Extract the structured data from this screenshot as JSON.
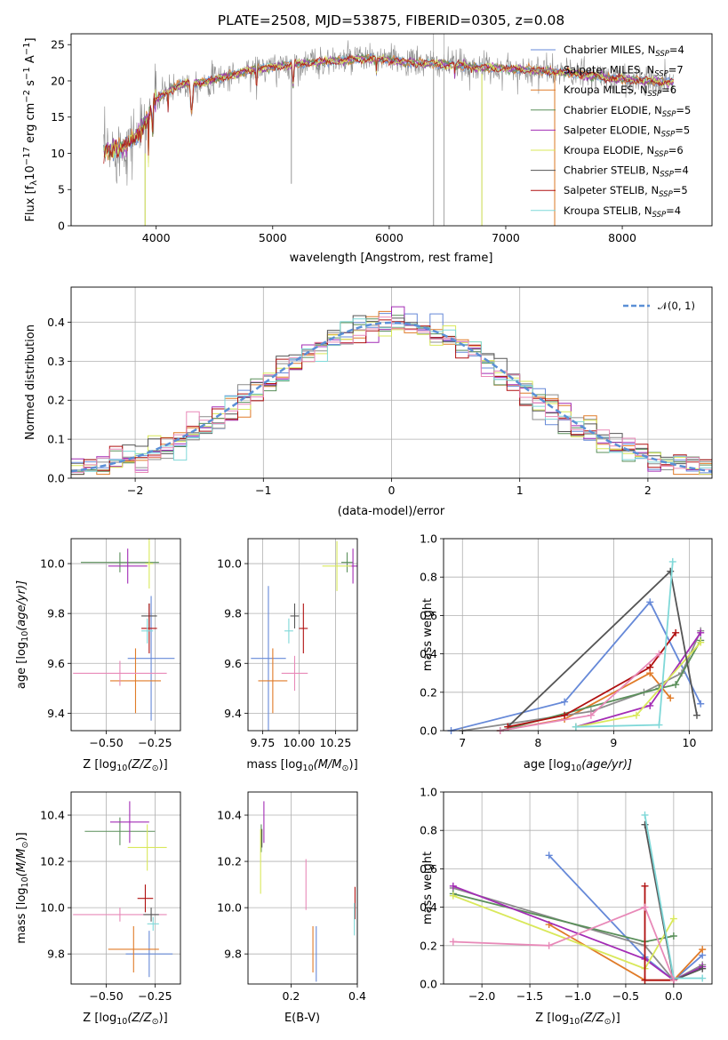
{
  "colors": {
    "CM": "#6689d8",
    "SM": "#8c8c8c",
    "KM": "#e07b28",
    "CE": "#5a8f5a",
    "SE": "#a32cb5",
    "KE": "#d9e85a",
    "CS": "#555555",
    "SS": "#b01010",
    "KS": "#7fd8d8",
    "P": "#e889b8"
  },
  "spectrum": {
    "title": "PLATE=2508, MJD=53875, FIBERID=0305, z=0.08",
    "xlabel": "wavelength [Angstrom, rest frame]",
    "ylabel_main": "Flux [f",
    "ylabel_lambda": "λ",
    "ylabel_tail": "10",
    "ylabel_exp1": "−17",
    "ylabel_units": " erg cm",
    "ylabel_exp2": "−2",
    "ylabel_s": " s",
    "ylabel_exp3": "−1",
    "ylabel_A": " A",
    "ylabel_exp4": "−1",
    "ylabel_close": "]",
    "xticks": [
      "4000",
      "5000",
      "6000",
      "7000",
      "8000"
    ],
    "yticks": [
      "0",
      "5",
      "10",
      "15",
      "20",
      "25"
    ],
    "legend": [
      {
        "label": "Chabrier MILES, N",
        "sub": "SSP",
        "n": "=4",
        "color": "CM"
      },
      {
        "label": "Salpeter MILES, N",
        "sub": "SSP",
        "n": "=7",
        "color": "SM"
      },
      {
        "label": "Kroupa MILES, N",
        "sub": "SSP",
        "n": "=6",
        "color": "KM"
      },
      {
        "label": "Chabrier ELODIE, N",
        "sub": "SSP",
        "n": "=5",
        "color": "CE"
      },
      {
        "label": "Salpeter ELODIE, N",
        "sub": "SSP",
        "n": "=5",
        "color": "SE"
      },
      {
        "label": "Kroupa ELODIE, N",
        "sub": "SSP",
        "n": "=6",
        "color": "KE"
      },
      {
        "label": "Chabrier STELIB, N",
        "sub": "SSP",
        "n": "=4",
        "color": "CS"
      },
      {
        "label": "Salpeter STELIB, N",
        "sub": "SSP",
        "n": "=5",
        "color": "SS"
      },
      {
        "label": "Kroupa STELIB, N",
        "sub": "SSP",
        "n": "=4",
        "color": "KS"
      }
    ]
  },
  "histogram": {
    "xlabel": "(data-model)/error",
    "ylabel": "Normed distribution",
    "xticks": [
      "−2",
      "−1",
      "0",
      "1",
      "2"
    ],
    "yticks": [
      "0.0",
      "0.1",
      "0.2",
      "0.3",
      "0.4"
    ],
    "legend_label": "𝒩(0, 1)"
  },
  "panels": {
    "age_vs_Z": {
      "xlabel": "Z [log",
      "xlabel_sub": "10",
      "xlabel_tail": "(Z/Z",
      "xlabel_sun": "⊙",
      "xlabel_close": ")]",
      "ylabel": "age  [log",
      "ylabel_sub": "10",
      "ylabel_tail": "(age/yr)]",
      "xticks": [
        "−0.50",
        "−0.25"
      ],
      "yticks": [
        "9.4",
        "9.6",
        "9.8",
        "10.0"
      ]
    },
    "age_vs_mass": {
      "xlabel": "mass [log",
      "xlabel_sub": "10",
      "xlabel_tail": "(M/M",
      "xlabel_sun": "⊙",
      "xlabel_close": ")]",
      "xticks": [
        "9.75",
        "10.00",
        "10.25"
      ],
      "yticks": [
        "9.4",
        "9.6",
        "9.8",
        "10.0"
      ]
    },
    "weight_vs_age": {
      "xlabel": "age  [log",
      "xlabel_sub": "10",
      "xlabel_tail": "(age/yr)]",
      "ylabel": "mass weight",
      "xticks": [
        "7",
        "8",
        "9",
        "10"
      ],
      "yticks": [
        "0.0",
        "0.2",
        "0.4",
        "0.6",
        "0.8",
        "1.0"
      ]
    },
    "mass_vs_Z": {
      "xlabel": "Z [log",
      "xlabel_sub": "10",
      "xlabel_tail": "(Z/Z",
      "xlabel_sun": "⊙",
      "xlabel_close": ")]",
      "ylabel": "mass [log",
      "ylabel_sub": "10",
      "ylabel_tail": "(M/M",
      "ylabel_sun": "⊙",
      "ylabel_close": ")]",
      "xticks": [
        "−0.50",
        "−0.25"
      ],
      "yticks": [
        "9.8",
        "10.0",
        "10.2",
        "10.4"
      ]
    },
    "mass_vs_ebv": {
      "xlabel": "E(B-V)",
      "xticks": [
        "0.2",
        "0.4"
      ],
      "yticks": [
        "9.8",
        "10.0",
        "10.2",
        "10.4"
      ]
    },
    "weight_vs_Z": {
      "xlabel": "Z [log",
      "xlabel_sub": "10",
      "xlabel_tail": "(Z/Z",
      "xlabel_sun": "⊙",
      "xlabel_close": ")]",
      "ylabel": "mass weight",
      "xticks": [
        "−2.0",
        "−1.5",
        "−1.0",
        "−0.5",
        "0.0"
      ],
      "yticks": [
        "0.0",
        "0.2",
        "0.4",
        "0.6",
        "0.8",
        "1.0"
      ]
    }
  },
  "chart_data": [
    {
      "type": "line",
      "title": "PLATE=2508, MJD=53875, FIBERID=0305, z=0.08",
      "xlabel": "wavelength [Angstrom, rest frame]",
      "ylabel": "Flux [fλ10^-17 erg cm^-2 s^-1 A^-1]",
      "xlim": [
        3270,
        8770
      ],
      "ylim": [
        0,
        26.5
      ],
      "grid": false,
      "legend_position": "right",
      "series_names": [
        "Chabrier MILES, N_SSP=4",
        "Salpeter MILES, N_SSP=7",
        "Kroupa MILES, N_SSP=6",
        "Chabrier ELODIE, N_SSP=5",
        "Salpeter ELODIE, N_SSP=5",
        "Kroupa ELODIE, N_SSP=6",
        "Chabrier STELIB, N_SSP=4",
        "Salpeter STELIB, N_SSP=5",
        "Kroupa STELIB, N_SSP=4"
      ],
      "continuum": {
        "x": [
          3550,
          3700,
          3850,
          4000,
          4200,
          4400,
          4600,
          4800,
          5000,
          5200,
          5400,
          5600,
          5800,
          6000,
          6200,
          6400,
          6600,
          6800,
          7000,
          7200,
          7400,
          7600,
          7800,
          8000,
          8200,
          8400
        ],
        "y": [
          10.2,
          10.8,
          12.5,
          17.5,
          19.5,
          19.8,
          20.6,
          21.5,
          21.9,
          22.3,
          22.6,
          22.8,
          23.1,
          22.9,
          22.5,
          22.3,
          22.2,
          21.8,
          21.7,
          21.5,
          21.3,
          21.0,
          20.6,
          20.2,
          20.0,
          19.8
        ]
      }
    },
    {
      "type": "bar",
      "xlabel": "(data-model)/error",
      "ylabel": "Normed distribution",
      "xlim": [
        -2.5,
        2.5
      ],
      "ylim": [
        0,
        0.49
      ],
      "grid": true,
      "legend_position": "top-right",
      "bin_width": 0.1,
      "bin_start": -2.5,
      "gaussian": {
        "name": "N(0,1)",
        "mean": 0,
        "sigma": 1
      },
      "series_names": [
        "Chabrier MILES, N_SSP=4",
        "Salpeter MILES, N_SSP=7",
        "Kroupa MILES, N_SSP=6",
        "Chabrier ELODIE, N_SSP=5",
        "Salpeter ELODIE, N_SSP=5",
        "Kroupa ELODIE, N_SSP=6",
        "Chabrier STELIB, N_SSP=4",
        "Salpeter STELIB, N_SSP=5",
        "Kroupa STELIB, N_SSP=4"
      ]
    },
    {
      "type": "scatter",
      "xlabel": "Z [log10(Z/Zsun)]",
      "ylabel": "age [log10(age/yr)]",
      "xlim": [
        -0.68,
        -0.12
      ],
      "ylim": [
        9.33,
        10.1
      ],
      "grid": true,
      "points": [
        {
          "s": "CM",
          "x": -0.27,
          "y": 9.62,
          "xe": 0.12,
          "ye": 0.25
        },
        {
          "s": "KM",
          "x": -0.35,
          "y": 9.53,
          "xe": 0.13,
          "ye": 0.13
        },
        {
          "s": "P",
          "x": -0.43,
          "y": 9.56,
          "xe": 0.24,
          "ye": 0.05
        },
        {
          "s": "CE",
          "x": -0.43,
          "y": 10.005,
          "xe": 0.2,
          "ye": 0.04
        },
        {
          "s": "SE",
          "x": -0.39,
          "y": 9.99,
          "xe": 0.1,
          "ye": 0.07
        },
        {
          "s": "KE",
          "x": -0.28,
          "y": 10.0,
          "xe": 0.02,
          "ye": 0.1
        },
        {
          "s": "CS",
          "x": -0.28,
          "y": 9.79,
          "xe": 0.04,
          "ye": 0.05
        },
        {
          "s": "SS",
          "x": -0.28,
          "y": 9.74,
          "xe": 0.04,
          "ye": 0.1
        },
        {
          "s": "KS",
          "x": -0.29,
          "y": 9.73,
          "xe": 0.03,
          "ye": 0.05
        }
      ]
    },
    {
      "type": "scatter",
      "xlabel": "mass [log10(M/Msun)]",
      "ylabel": "age [log10(age/yr)]",
      "xlim": [
        9.65,
        10.4
      ],
      "ylim": [
        9.33,
        10.1
      ],
      "grid": true,
      "points": [
        {
          "s": "CM",
          "x": 9.79,
          "y": 9.62,
          "xe": 0.12,
          "ye": 0.29
        },
        {
          "s": "KM",
          "x": 9.82,
          "y": 9.53,
          "xe": 0.1,
          "ye": 0.13
        },
        {
          "s": "P",
          "x": 9.97,
          "y": 9.56,
          "xe": 0.09,
          "ye": 0.07
        },
        {
          "s": "CE",
          "x": 10.33,
          "y": 10.005,
          "xe": 0.04,
          "ye": 0.04
        },
        {
          "s": "SE",
          "x": 10.37,
          "y": 9.99,
          "xe": 0.03,
          "ye": 0.07
        },
        {
          "s": "KE",
          "x": 10.26,
          "y": 9.99,
          "xe": 0.1,
          "ye": 0.1
        },
        {
          "s": "CS",
          "x": 9.97,
          "y": 9.79,
          "xe": 0.03,
          "ye": 0.05
        },
        {
          "s": "SS",
          "x": 10.03,
          "y": 9.74,
          "xe": 0.03,
          "ye": 0.1
        },
        {
          "s": "KS",
          "x": 9.93,
          "y": 9.73,
          "xe": 0.03,
          "ye": 0.05
        }
      ]
    },
    {
      "type": "line",
      "xlabel": "age [log10(age/yr)]",
      "ylabel": "mass weight",
      "xlim": [
        6.75,
        10.3
      ],
      "ylim": [
        0,
        1.0
      ],
      "grid": true,
      "series": [
        {
          "s": "CM",
          "x": [
            6.85,
            8.35,
            9.48,
            10.15
          ],
          "y": [
            0.0,
            0.15,
            0.67,
            0.14
          ]
        },
        {
          "s": "KM",
          "x": [
            7.5,
            8.35,
            9.48,
            9.75
          ],
          "y": [
            0.0,
            0.06,
            0.3,
            0.17
          ]
        },
        {
          "s": "SM",
          "x": [
            7.0,
            8.7,
            9.4,
            9.9,
            10.15
          ],
          "y": [
            0.0,
            0.1,
            0.2,
            0.3,
            0.52
          ]
        },
        {
          "s": "CE",
          "x": [
            7.5,
            9.6,
            9.82,
            10.15
          ],
          "y": [
            0.0,
            0.22,
            0.24,
            0.47
          ]
        },
        {
          "s": "SE",
          "x": [
            8.5,
            9.48,
            10.15
          ],
          "y": [
            0.02,
            0.13,
            0.51
          ]
        },
        {
          "s": "KE",
          "x": [
            8.5,
            9.3,
            10.15
          ],
          "y": [
            0.02,
            0.08,
            0.46
          ]
        },
        {
          "s": "CS",
          "x": [
            7.6,
            9.75,
            10.1
          ],
          "y": [
            0.02,
            0.83,
            0.08
          ]
        },
        {
          "s": "SS",
          "x": [
            7.6,
            8.35,
            9.48,
            9.82
          ],
          "y": [
            0.02,
            0.08,
            0.33,
            0.51
          ]
        },
        {
          "s": "KS",
          "x": [
            8.5,
            9.6,
            9.78
          ],
          "y": [
            0.02,
            0.03,
            0.88
          ]
        },
        {
          "s": "P",
          "x": [
            7.5,
            8.7,
            9.6
          ],
          "y": [
            0.0,
            0.08,
            0.4
          ]
        }
      ]
    },
    {
      "type": "scatter",
      "xlabel": "Z [log10(Z/Zsun)]",
      "ylabel": "mass [log10(M/Msun)]",
      "xlim": [
        -0.68,
        -0.12
      ],
      "ylim": [
        9.67,
        10.5
      ],
      "grid": true,
      "points": [
        {
          "s": "CM",
          "x": -0.28,
          "y": 9.8,
          "xe": 0.12,
          "ye": 0.1
        },
        {
          "s": "KM",
          "x": -0.36,
          "y": 9.82,
          "xe": 0.13,
          "ye": 0.1
        },
        {
          "s": "P",
          "x": -0.43,
          "y": 9.97,
          "xe": 0.24,
          "ye": 0.03
        },
        {
          "s": "CE",
          "x": -0.43,
          "y": 10.33,
          "xe": 0.18,
          "ye": 0.06
        },
        {
          "s": "SE",
          "x": -0.38,
          "y": 10.37,
          "xe": 0.1,
          "ye": 0.09
        },
        {
          "s": "KE",
          "x": -0.29,
          "y": 10.26,
          "xe": 0.1,
          "ye": 0.1
        },
        {
          "s": "CS",
          "x": -0.27,
          "y": 9.97,
          "xe": 0.04,
          "ye": 0.03
        },
        {
          "s": "SS",
          "x": -0.3,
          "y": 10.04,
          "xe": 0.04,
          "ye": 0.06
        },
        {
          "s": "KS",
          "x": -0.26,
          "y": 9.93,
          "xe": 0.03,
          "ye": 0.03
        }
      ]
    },
    {
      "type": "scatter",
      "xlabel": "E(B-V)",
      "ylabel": "mass [log10(M/Msun)]",
      "xlim": [
        0.07,
        0.4
      ],
      "ylim": [
        9.67,
        10.5
      ],
      "grid": true,
      "points": [
        {
          "s": "CM",
          "x": 0.276,
          "y": 9.8,
          "ye": 0.12
        },
        {
          "s": "KM",
          "x": 0.266,
          "y": 9.82,
          "ye": 0.1
        },
        {
          "s": "P",
          "x": 0.245,
          "y": 10.1,
          "ye": 0.11
        },
        {
          "s": "CE",
          "x": 0.11,
          "y": 10.3,
          "ye": 0.06
        },
        {
          "s": "SE",
          "x": 0.118,
          "y": 10.37,
          "ye": 0.09
        },
        {
          "s": "KE",
          "x": 0.108,
          "y": 10.2,
          "ye": 0.14
        },
        {
          "s": "CS",
          "x": 0.112,
          "y": 10.3,
          "ye": 0.04
        },
        {
          "s": "SS",
          "x": 0.393,
          "y": 10.02,
          "ye": 0.07
        },
        {
          "s": "KS",
          "x": 0.391,
          "y": 9.95,
          "ye": 0.07
        }
      ]
    },
    {
      "type": "line",
      "xlabel": "Z [log10(Z/Zsun)]",
      "ylabel": "mass weight",
      "xlim": [
        -2.4,
        0.4
      ],
      "ylim": [
        0,
        1.0
      ],
      "grid": true,
      "series": [
        {
          "s": "CM",
          "x": [
            -1.3,
            -0.3,
            0.0,
            0.3
          ],
          "y": [
            0.67,
            0.14,
            0.02,
            0.15
          ]
        },
        {
          "s": "KM",
          "x": [
            -1.3,
            -0.3,
            0.0,
            0.3
          ],
          "y": [
            0.31,
            0.02,
            0.02,
            0.18
          ]
        },
        {
          "s": "SM",
          "x": [
            -2.3,
            -0.3,
            0.0,
            0.3
          ],
          "y": [
            0.5,
            0.2,
            0.02,
            0.1
          ]
        },
        {
          "s": "CE",
          "x": [
            -2.3,
            -0.3,
            0.0
          ],
          "y": [
            0.47,
            0.22,
            0.25
          ]
        },
        {
          "s": "SE",
          "x": [
            -2.3,
            -0.3,
            0.0,
            0.3
          ],
          "y": [
            0.51,
            0.13,
            0.02,
            0.09
          ]
        },
        {
          "s": "KE",
          "x": [
            -2.3,
            -0.3,
            0.0
          ],
          "y": [
            0.46,
            0.08,
            0.34
          ]
        },
        {
          "s": "CS",
          "x": [
            -0.3,
            0.0,
            0.3
          ],
          "y": [
            0.83,
            0.02,
            0.08
          ]
        },
        {
          "s": "SS",
          "x": [
            -0.3,
            -0.3,
            0.0
          ],
          "y": [
            0.51,
            0.02,
            0.02
          ]
        },
        {
          "s": "KS",
          "x": [
            -0.3,
            0.0,
            0.3
          ],
          "y": [
            0.88,
            0.03,
            0.03
          ]
        },
        {
          "s": "P",
          "x": [
            -2.3,
            -1.3,
            -0.3,
            0.0
          ],
          "y": [
            0.22,
            0.2,
            0.4,
            0.02
          ]
        }
      ]
    }
  ]
}
